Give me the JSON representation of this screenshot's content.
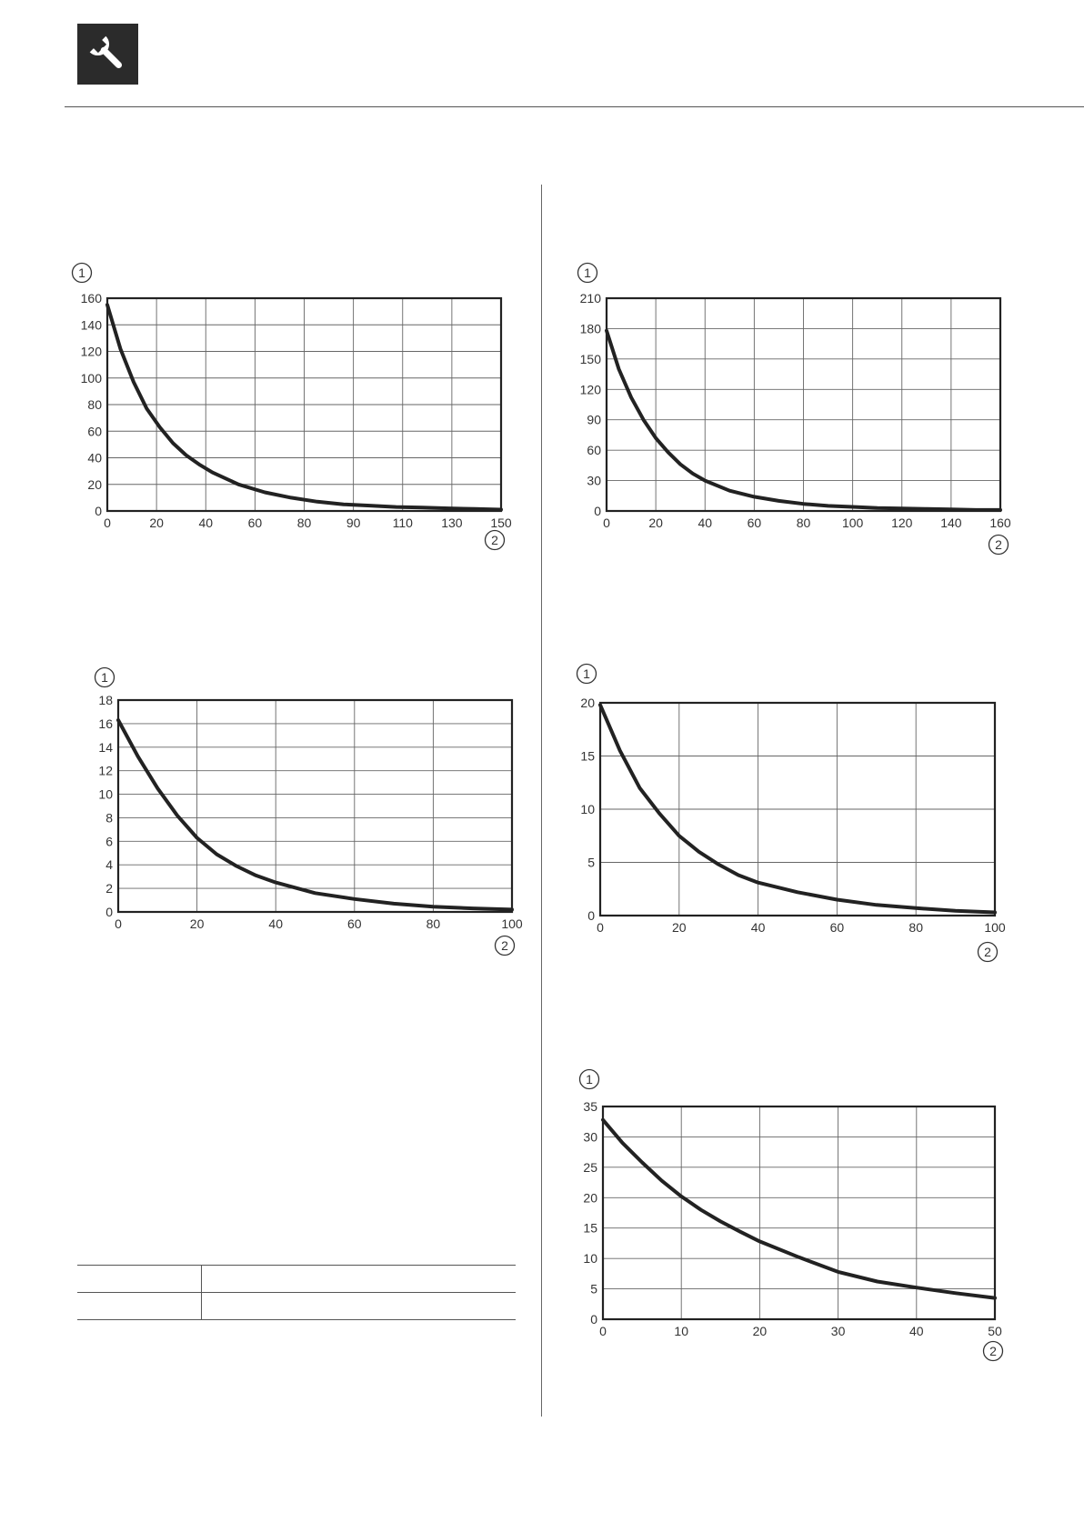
{
  "header": {
    "icon": "wrench-icon"
  },
  "legend_table": {
    "rows": [
      {
        "key": "",
        "value": ""
      },
      {
        "key": "",
        "value": ""
      }
    ]
  },
  "chart_data": [
    {
      "type": "line",
      "ylabel": "①",
      "xlabel": "②",
      "xlim": [
        0,
        150
      ],
      "ylim": [
        0,
        160
      ],
      "x_ticks": [
        0,
        20,
        40,
        60,
        80,
        90,
        110,
        130,
        150
      ],
      "y_ticks": [
        0,
        20,
        40,
        60,
        80,
        100,
        120,
        140,
        160
      ],
      "grid": true,
      "series": [
        {
          "x": [
            0,
            5,
            10,
            15,
            20,
            25,
            30,
            35,
            40,
            50,
            60,
            70,
            80,
            90,
            100,
            110,
            120,
            130,
            140,
            150
          ],
          "y": [
            155,
            122,
            97,
            77,
            63,
            51,
            42,
            35,
            29,
            20,
            14,
            10,
            7,
            5,
            4,
            3,
            2.5,
            2,
            1.5,
            1
          ]
        }
      ]
    },
    {
      "type": "line",
      "ylabel": "①",
      "xlabel": "②",
      "xlim": [
        0,
        160
      ],
      "ylim": [
        0,
        210
      ],
      "x_ticks": [
        0,
        20,
        40,
        60,
        80,
        100,
        120,
        140,
        160
      ],
      "y_ticks": [
        0,
        30,
        60,
        90,
        120,
        150,
        180,
        210
      ],
      "grid": true,
      "series": [
        {
          "x": [
            0,
            5,
            10,
            15,
            20,
            25,
            30,
            35,
            40,
            50,
            60,
            70,
            80,
            90,
            100,
            110,
            120,
            130,
            140,
            150,
            160
          ],
          "y": [
            178,
            140,
            112,
            90,
            72,
            58,
            46,
            37,
            30,
            20,
            14,
            10,
            7,
            5,
            4,
            3,
            2.5,
            2,
            1.5,
            1,
            1
          ]
        }
      ]
    },
    {
      "type": "line",
      "ylabel": "①",
      "xlabel": "②",
      "xlim": [
        0,
        100
      ],
      "ylim": [
        0,
        18
      ],
      "x_ticks": [
        0,
        20,
        40,
        60,
        80,
        100
      ],
      "y_ticks": [
        0,
        2,
        4,
        6,
        8,
        10,
        12,
        14,
        16,
        18
      ],
      "grid": true,
      "series": [
        {
          "x": [
            0,
            5,
            10,
            15,
            20,
            25,
            30,
            35,
            40,
            50,
            60,
            70,
            80,
            90,
            100
          ],
          "y": [
            16.3,
            13.2,
            10.5,
            8.2,
            6.3,
            4.9,
            3.9,
            3.1,
            2.5,
            1.6,
            1.1,
            0.7,
            0.45,
            0.3,
            0.2
          ]
        }
      ]
    },
    {
      "type": "line",
      "ylabel": "①",
      "xlabel": "②",
      "xlim": [
        0,
        100
      ],
      "ylim": [
        0,
        20
      ],
      "x_ticks": [
        0,
        20,
        40,
        60,
        80,
        100
      ],
      "y_ticks": [
        0,
        5,
        10,
        15,
        20
      ],
      "grid": true,
      "series": [
        {
          "x": [
            0,
            5,
            10,
            15,
            20,
            25,
            30,
            35,
            40,
            50,
            60,
            70,
            80,
            90,
            100
          ],
          "y": [
            19.8,
            15.5,
            12.0,
            9.6,
            7.5,
            6.0,
            4.8,
            3.8,
            3.1,
            2.2,
            1.5,
            1.0,
            0.7,
            0.45,
            0.3
          ]
        }
      ]
    },
    {
      "type": "line",
      "ylabel": "①",
      "xlabel": "②",
      "xlim": [
        0,
        50
      ],
      "ylim": [
        0,
        35
      ],
      "x_ticks": [
        0,
        10,
        20,
        30,
        40,
        50
      ],
      "y_ticks": [
        0,
        5,
        10,
        15,
        20,
        25,
        30,
        35
      ],
      "grid": true,
      "series": [
        {
          "x": [
            0,
            2.5,
            5,
            7.5,
            10,
            12.5,
            15,
            17.5,
            20,
            25,
            30,
            35,
            40,
            45,
            50
          ],
          "y": [
            32.8,
            29.0,
            25.8,
            22.8,
            20.2,
            18.0,
            16.1,
            14.4,
            12.8,
            10.2,
            7.8,
            6.2,
            5.2,
            4.3,
            3.5
          ]
        }
      ]
    }
  ]
}
